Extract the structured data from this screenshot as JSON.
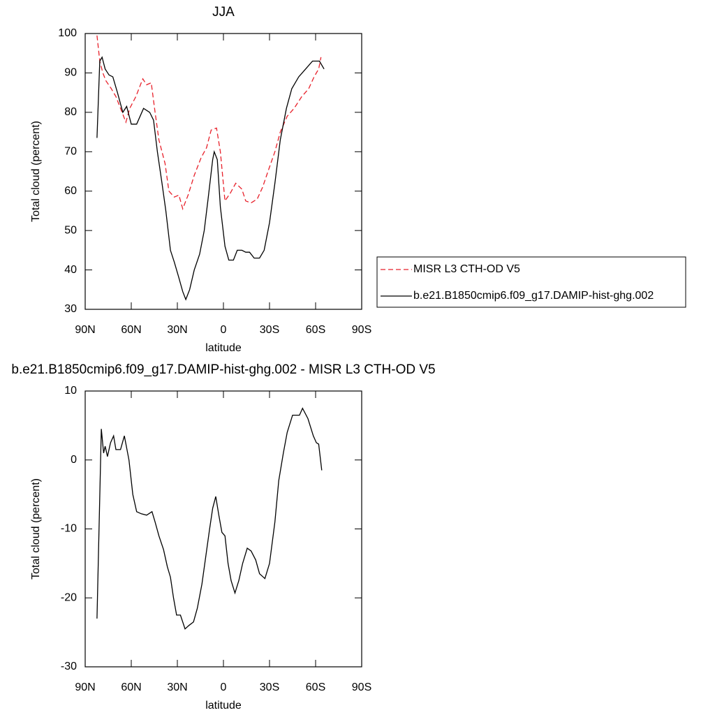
{
  "chart_data": [
    {
      "type": "line",
      "title": "JJA",
      "xlabel": "latitude",
      "ylabel": "Total cloud (percent)",
      "xlim": [
        90,
        -90
      ],
      "ylim": [
        30,
        100
      ],
      "xticks": [
        {
          "value": 90,
          "label": "90N"
        },
        {
          "value": 60,
          "label": "60N"
        },
        {
          "value": 30,
          "label": "30N"
        },
        0,
        {
          "value": -30,
          "label": "30S"
        },
        {
          "value": -60,
          "label": "60S"
        },
        {
          "value": -90,
          "label": "90S"
        }
      ],
      "yticks": [
        30,
        40,
        50,
        60,
        70,
        80,
        90,
        100
      ],
      "legend": "right",
      "series": [
        {
          "name": "MISR L3 CTH-OD V5",
          "color": "#e8202a",
          "line_style": "dashed",
          "x": [
            82.3,
            80.5,
            78.5,
            76.5,
            73,
            70,
            67,
            63.5,
            61,
            57,
            52.5,
            50,
            47,
            44.5,
            42,
            38,
            35.5,
            32,
            29,
            26.5,
            23,
            19,
            14.5,
            11,
            8,
            4.5,
            2,
            -1,
            -4.5,
            -8,
            -12,
            -14.5,
            -18,
            -22,
            -25.5,
            -29,
            -33.5,
            -37,
            -41.5,
            -46,
            -51,
            -55.5,
            -59,
            -62,
            -63.5
          ],
          "values": [
            99.5,
            93,
            90,
            88,
            86,
            84,
            81,
            77.5,
            81,
            84,
            88.5,
            87,
            87.5,
            80,
            73,
            67,
            60,
            58.5,
            59,
            55.5,
            59,
            64,
            68.5,
            71,
            75.5,
            76,
            70,
            57.5,
            59.5,
            62,
            60.5,
            57.5,
            57,
            58,
            61,
            65,
            70,
            75,
            79,
            81,
            84,
            86,
            89,
            91,
            94
          ]
        },
        {
          "name": "b.e21.B1850cmip6.f09_g17.DAMIP-hist-ghg.002",
          "color": "#000000",
          "line_style": "solid",
          "x": [
            82.3,
            80.5,
            79,
            77,
            74.5,
            72,
            69,
            65.5,
            63,
            60,
            56.5,
            52,
            48,
            45.5,
            43,
            40,
            37.5,
            34.5,
            32,
            29,
            26.5,
            24.5,
            22,
            19,
            15.5,
            12.5,
            10,
            7,
            6,
            4,
            2,
            -1,
            -3.5,
            -6.5,
            -9,
            -12,
            -14.5,
            -17,
            -20,
            -23.5,
            -26.5,
            -30,
            -33.5,
            -37,
            -41,
            -44.5,
            -49,
            -53.5,
            -58,
            -62.5,
            -65.5
          ],
          "values": [
            73.5,
            93,
            94,
            91,
            89.5,
            89,
            85,
            80,
            81.5,
            77,
            77,
            81,
            80,
            78,
            70,
            62,
            55,
            45,
            42,
            38,
            34.5,
            32.5,
            35,
            40,
            44,
            50,
            58,
            68,
            70,
            68,
            56,
            46,
            42.5,
            42.5,
            45,
            45,
            44.5,
            44.5,
            43,
            43,
            45,
            52,
            62,
            73,
            81,
            86,
            89,
            91,
            93,
            93,
            91
          ]
        }
      ]
    },
    {
      "type": "line",
      "title": "b.e21.B1850cmip6.f09_g17.DAMIP-hist-ghg.002 - MISR L3 CTH-OD V5",
      "xlabel": "latitude",
      "ylabel": "Total cloud (percent)",
      "xlim": [
        90,
        -90
      ],
      "ylim": [
        -30,
        10
      ],
      "xticks": [
        {
          "value": 90,
          "label": "90N"
        },
        {
          "value": 60,
          "label": "60N"
        },
        {
          "value": 30,
          "label": "30N"
        },
        0,
        {
          "value": -30,
          "label": "30S"
        },
        {
          "value": -60,
          "label": "60S"
        },
        {
          "value": -90,
          "label": "90S"
        }
      ],
      "yticks": [
        -30,
        -20,
        -10,
        0,
        10
      ],
      "series": [
        {
          "color": "#000000",
          "line_style": "solid",
          "x": [
            82.3,
            79.5,
            78,
            77,
            75.5,
            73.5,
            71.5,
            70,
            67,
            64.5,
            61.5,
            59,
            56.5,
            53.5,
            50,
            46.5,
            44.5,
            42,
            39,
            36.5,
            34.5,
            32.5,
            30.5,
            28,
            25,
            22.5,
            19.5,
            17,
            14,
            11.5,
            9,
            7,
            5,
            3,
            1,
            -1,
            -3,
            -5,
            -7.5,
            -10,
            -12.5,
            -15.5,
            -18,
            -21,
            -23.5,
            -27,
            -30,
            -33.5,
            -36,
            -39,
            -41.5,
            -45,
            -49.5,
            -51.5,
            -55,
            -58.5,
            -60.5,
            -62,
            -64
          ],
          "values": [
            -23,
            4.5,
            1,
            2,
            0.5,
            2.5,
            3.5,
            1.5,
            1.5,
            3.5,
            0,
            -5,
            -7.5,
            -7.8,
            -8,
            -7.5,
            -9,
            -11,
            -13,
            -15.5,
            -17,
            -20,
            -22.5,
            -22.5,
            -24.5,
            -24,
            -23.5,
            -21.5,
            -18,
            -14,
            -10,
            -7,
            -5.3,
            -8,
            -10.5,
            -11,
            -15,
            -17.5,
            -19.3,
            -17.5,
            -15,
            -12.8,
            -13.2,
            -14.5,
            -16.5,
            -17.2,
            -15,
            -9,
            -3,
            1,
            4,
            6.5,
            6.5,
            7.5,
            6,
            3.5,
            2.5,
            2.3,
            -1.5
          ]
        }
      ]
    }
  ]
}
